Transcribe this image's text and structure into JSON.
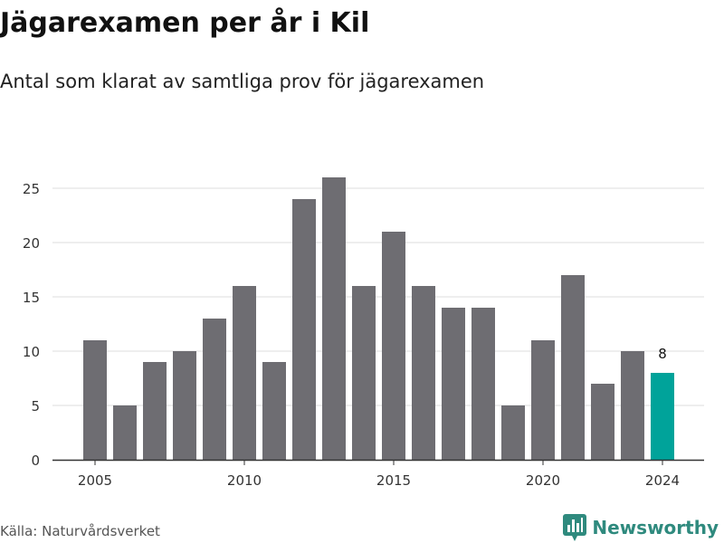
{
  "title": "Jägarexamen per år i Kil",
  "subtitle": "Antal som klarat av samtliga prov för jägarexamen",
  "source": "Källa: Naturvårdsverket",
  "brand": {
    "name": "Newsworthy",
    "icon": "newsworthy-logo-icon",
    "color": "#2f8a7e"
  },
  "colors": {
    "bar": "#6e6d72",
    "highlight": "#00a39a",
    "grid": "#dddddd",
    "axis": "#333333"
  },
  "chart_data": {
    "type": "bar",
    "categories": [
      "2005",
      "2006",
      "2007",
      "2008",
      "2009",
      "2010",
      "2011",
      "2012",
      "2013",
      "2014",
      "2015",
      "2016",
      "2017",
      "2018",
      "2019",
      "2020",
      "2021",
      "2022",
      "2023",
      "2024"
    ],
    "values": [
      11,
      5,
      9,
      10,
      13,
      16,
      9,
      24,
      26,
      16,
      21,
      16,
      14,
      14,
      5,
      11,
      17,
      7,
      10,
      8
    ],
    "highlight_index": 19,
    "data_labels": [
      {
        "index": 19,
        "text": "8"
      }
    ],
    "x_tick_labels": [
      "2005",
      "2010",
      "2015",
      "2020",
      "2024"
    ],
    "y_ticks": [
      0,
      5,
      10,
      15,
      20,
      25
    ],
    "ylim": [
      0,
      27.5
    ],
    "grid": "horizontal",
    "legend": "none"
  }
}
